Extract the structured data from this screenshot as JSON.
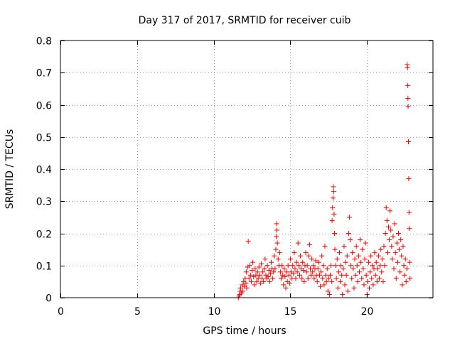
{
  "chart_data": {
    "type": "scatter",
    "title": "Day 317 of 2017, SRMTID for receiver cuib",
    "xlabel": "GPS time / hours",
    "ylabel": "SRMTID / TECUs",
    "xlim": [
      0,
      24.3
    ],
    "ylim": [
      0,
      0.8
    ],
    "xticks": [
      0,
      5,
      10,
      15,
      20
    ],
    "yticks": [
      0,
      0.1,
      0.2,
      0.3,
      0.4,
      0.5,
      0.6,
      0.7,
      0.8
    ],
    "xtick_labels": [
      "0",
      "5",
      "10",
      "15",
      "20"
    ],
    "ytick_labels": [
      "0",
      "0.1",
      "0.2",
      "0.3",
      "0.4",
      "0.5",
      "0.6",
      "0.7",
      "0.8"
    ],
    "grid": true,
    "marker": "+",
    "marker_color": "#ff0000",
    "series": [
      {
        "name": "SRMTID",
        "points": [
          [
            11.6,
            0.0
          ],
          [
            11.65,
            0.005
          ],
          [
            11.7,
            0.01
          ],
          [
            11.72,
            0.02
          ],
          [
            11.75,
            0.03
          ],
          [
            11.8,
            0.015
          ],
          [
            11.85,
            0.04
          ],
          [
            11.9,
            0.02
          ],
          [
            11.95,
            0.05
          ],
          [
            12.0,
            0.035
          ],
          [
            12.05,
            0.06
          ],
          [
            12.1,
            0.045
          ],
          [
            12.12,
            0.08
          ],
          [
            12.15,
            0.03
          ],
          [
            12.2,
            0.095
          ],
          [
            12.25,
            0.175
          ],
          [
            12.3,
            0.06
          ],
          [
            12.35,
            0.1
          ],
          [
            12.4,
            0.07
          ],
          [
            12.45,
            0.05
          ],
          [
            12.5,
            0.085
          ],
          [
            12.55,
            0.11
          ],
          [
            12.6,
            0.065
          ],
          [
            12.65,
            0.04
          ],
          [
            12.7,
            0.09
          ],
          [
            12.75,
            0.07
          ],
          [
            12.8,
            0.05
          ],
          [
            12.85,
            0.08
          ],
          [
            12.9,
            0.06
          ],
          [
            12.95,
            0.095
          ],
          [
            13.0,
            0.07
          ],
          [
            13.05,
            0.045
          ],
          [
            13.1,
            0.105
          ],
          [
            13.15,
            0.06
          ],
          [
            13.2,
            0.08
          ],
          [
            13.25,
            0.05
          ],
          [
            13.3,
            0.09
          ],
          [
            13.35,
            0.12
          ],
          [
            13.4,
            0.07
          ],
          [
            13.45,
            0.06
          ],
          [
            13.5,
            0.1
          ],
          [
            13.55,
            0.065
          ],
          [
            13.6,
            0.085
          ],
          [
            13.65,
            0.05
          ],
          [
            13.7,
            0.075
          ],
          [
            13.75,
            0.11
          ],
          [
            13.8,
            0.09
          ],
          [
            13.85,
            0.06
          ],
          [
            13.9,
            0.08
          ],
          [
            13.95,
            0.13
          ],
          [
            14.0,
            0.09
          ],
          [
            14.05,
            0.15
          ],
          [
            14.08,
            0.19
          ],
          [
            14.1,
            0.23
          ],
          [
            14.12,
            0.21
          ],
          [
            14.15,
            0.17
          ],
          [
            14.2,
            0.12
          ],
          [
            14.25,
            0.1
          ],
          [
            14.3,
            0.14
          ],
          [
            14.35,
            0.08
          ],
          [
            14.4,
            0.06
          ],
          [
            14.45,
            0.1
          ],
          [
            14.5,
            0.07
          ],
          [
            14.55,
            0.04
          ],
          [
            14.6,
            0.09
          ],
          [
            14.65,
            0.065
          ],
          [
            14.7,
            0.03
          ],
          [
            14.75,
            0.08
          ],
          [
            14.8,
            0.05
          ],
          [
            14.85,
            0.1
          ],
          [
            14.9,
            0.07
          ],
          [
            14.95,
            0.045
          ],
          [
            15.0,
            0.12
          ],
          [
            15.05,
            0.08
          ],
          [
            15.1,
            0.06
          ],
          [
            15.15,
            0.1
          ],
          [
            15.2,
            0.075
          ],
          [
            15.25,
            0.14
          ],
          [
            15.3,
            0.09
          ],
          [
            15.35,
            0.06
          ],
          [
            15.4,
            0.11
          ],
          [
            15.45,
            0.08
          ],
          [
            15.5,
            0.17
          ],
          [
            15.55,
            0.1
          ],
          [
            15.6,
            0.07
          ],
          [
            15.65,
            0.13
          ],
          [
            15.7,
            0.09
          ],
          [
            15.75,
            0.06
          ],
          [
            15.8,
            0.11
          ],
          [
            15.85,
            0.085
          ],
          [
            15.9,
            0.05
          ],
          [
            15.95,
            0.1
          ],
          [
            16.0,
            0.14
          ],
          [
            16.05,
            0.08
          ],
          [
            16.1,
            0.1
          ],
          [
            16.15,
            0.06
          ],
          [
            16.2,
            0.13
          ],
          [
            16.25,
            0.165
          ],
          [
            16.3,
            0.09
          ],
          [
            16.35,
            0.07
          ],
          [
            16.4,
            0.12
          ],
          [
            16.45,
            0.08
          ],
          [
            16.5,
            0.1
          ],
          [
            16.55,
            0.06
          ],
          [
            16.6,
            0.09
          ],
          [
            16.65,
            0.115
          ],
          [
            16.7,
            0.07
          ],
          [
            16.75,
            0.05
          ],
          [
            16.8,
            0.09
          ],
          [
            16.85,
            0.11
          ],
          [
            16.9,
            0.07
          ],
          [
            16.95,
            0.035
          ],
          [
            17.0,
            0.08
          ],
          [
            17.05,
            0.13
          ],
          [
            17.1,
            0.06
          ],
          [
            17.15,
            0.1
          ],
          [
            17.2,
            0.04
          ],
          [
            17.25,
            0.16
          ],
          [
            17.3,
            0.07
          ],
          [
            17.35,
            0.05
          ],
          [
            17.4,
            0.09
          ],
          [
            17.45,
            0.02
          ],
          [
            17.5,
            0.06
          ],
          [
            17.55,
            0.01
          ],
          [
            17.6,
            0.07
          ],
          [
            17.65,
            0.1
          ],
          [
            17.7,
            0.05
          ],
          [
            17.72,
            0.24
          ],
          [
            17.75,
            0.28
          ],
          [
            17.78,
            0.31
          ],
          [
            17.8,
            0.345
          ],
          [
            17.82,
            0.33
          ],
          [
            17.85,
            0.26
          ],
          [
            17.88,
            0.2
          ],
          [
            17.9,
            0.15
          ],
          [
            17.95,
            0.1
          ],
          [
            18.0,
            0.06
          ],
          [
            18.05,
            0.12
          ],
          [
            18.1,
            0.03
          ],
          [
            18.15,
            0.08
          ],
          [
            18.2,
            0.14
          ],
          [
            18.25,
            0.05
          ],
          [
            18.3,
            0.1
          ],
          [
            18.35,
            0.07
          ],
          [
            18.4,
            0.01
          ],
          [
            18.45,
            0.09
          ],
          [
            18.5,
            0.16
          ],
          [
            18.55,
            0.04
          ],
          [
            18.6,
            0.11
          ],
          [
            18.65,
            0.07
          ],
          [
            18.7,
            0.13
          ],
          [
            18.75,
            0.02
          ],
          [
            18.8,
            0.2
          ],
          [
            18.85,
            0.25
          ],
          [
            18.9,
            0.18
          ],
          [
            18.95,
            0.1
          ],
          [
            19.0,
            0.06
          ],
          [
            19.05,
            0.14
          ],
          [
            19.1,
            0.09
          ],
          [
            19.15,
            0.03
          ],
          [
            19.2,
            0.12
          ],
          [
            19.25,
            0.07
          ],
          [
            19.3,
            0.16
          ],
          [
            19.35,
            0.1
          ],
          [
            19.4,
            0.05
          ],
          [
            19.45,
            0.13
          ],
          [
            19.5,
            0.08
          ],
          [
            19.55,
            0.18
          ],
          [
            19.6,
            0.11
          ],
          [
            19.65,
            0.06
          ],
          [
            19.7,
            0.15
          ],
          [
            19.75,
            0.09
          ],
          [
            19.8,
            0.04
          ],
          [
            19.85,
            0.12
          ],
          [
            19.9,
            0.17
          ],
          [
            19.95,
            0.07
          ],
          [
            20.0,
            0.01
          ],
          [
            20.05,
            0.05
          ],
          [
            20.1,
            0.11
          ],
          [
            20.15,
            0.03
          ],
          [
            20.2,
            0.08
          ],
          [
            20.25,
            0.13
          ],
          [
            20.3,
            0.06
          ],
          [
            20.35,
            0.1
          ],
          [
            20.4,
            0.04
          ],
          [
            20.45,
            0.09
          ],
          [
            20.5,
            0.14
          ],
          [
            20.55,
            0.07
          ],
          [
            20.6,
            0.11
          ],
          [
            20.65,
            0.05
          ],
          [
            20.7,
            0.09
          ],
          [
            20.75,
            0.13
          ],
          [
            20.8,
            0.06
          ],
          [
            20.85,
            0.1
          ],
          [
            20.9,
            0.15
          ],
          [
            20.95,
            0.08
          ],
          [
            21.0,
            0.12
          ],
          [
            21.05,
            0.05
          ],
          [
            21.1,
            0.16
          ],
          [
            21.15,
            0.1
          ],
          [
            21.2,
            0.2
          ],
          [
            21.25,
            0.28
          ],
          [
            21.3,
            0.24
          ],
          [
            21.35,
            0.14
          ],
          [
            21.4,
            0.22
          ],
          [
            21.45,
            0.18
          ],
          [
            21.5,
            0.27
          ],
          [
            21.55,
            0.21
          ],
          [
            21.6,
            0.16
          ],
          [
            21.65,
            0.12
          ],
          [
            21.7,
            0.19
          ],
          [
            21.75,
            0.09
          ],
          [
            21.8,
            0.23
          ],
          [
            21.85,
            0.14
          ],
          [
            21.9,
            0.06
          ],
          [
            21.95,
            0.17
          ],
          [
            22.0,
            0.11
          ],
          [
            22.05,
            0.2
          ],
          [
            22.1,
            0.15
          ],
          [
            22.15,
            0.08
          ],
          [
            22.2,
            0.18
          ],
          [
            22.25,
            0.13
          ],
          [
            22.3,
            0.04
          ],
          [
            22.35,
            0.16
          ],
          [
            22.4,
            0.1
          ],
          [
            22.45,
            0.07
          ],
          [
            22.5,
            0.12
          ],
          [
            22.55,
            0.05
          ],
          [
            22.6,
            0.09
          ],
          [
            22.62,
            0.725
          ],
          [
            22.64,
            0.715
          ],
          [
            22.66,
            0.66
          ],
          [
            22.67,
            0.62
          ],
          [
            22.68,
            0.595
          ],
          [
            22.7,
            0.485
          ],
          [
            22.72,
            0.37
          ],
          [
            22.74,
            0.265
          ],
          [
            22.76,
            0.215
          ],
          [
            22.78,
            0.11
          ],
          [
            22.8,
            0.06
          ]
        ]
      }
    ]
  }
}
